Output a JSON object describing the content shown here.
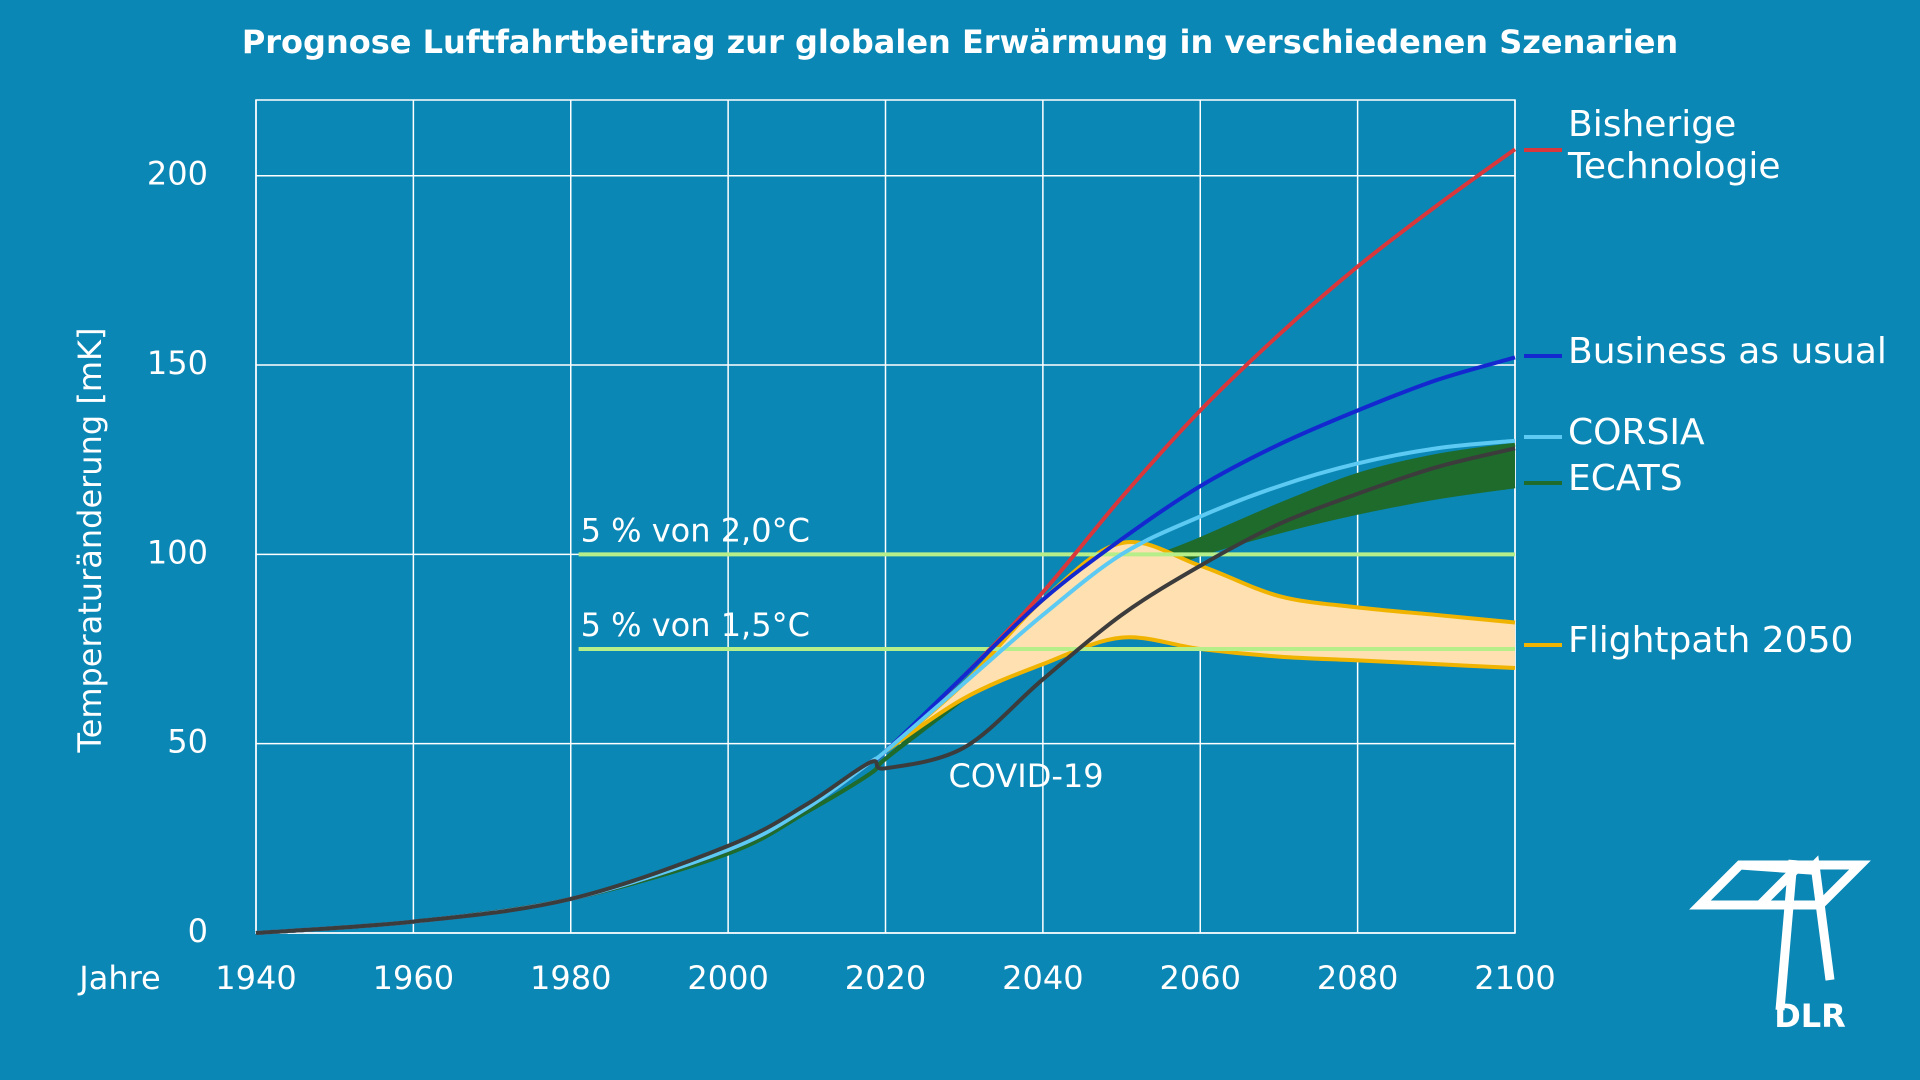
{
  "chart_data": {
    "type": "line",
    "title": "Prognose Luftfahrtbeitrag zur globalen Erwärmung in verschiedenen Szenarien",
    "x_label": "Jahre",
    "y_label": "Temperaturänderung [mK]",
    "x": [
      1940,
      1960,
      1980,
      2000,
      2010,
      2018,
      2020,
      2030,
      2040,
      2050,
      2060,
      2070,
      2080,
      2090,
      2100
    ],
    "xlim": [
      1940,
      2100
    ],
    "xticks": [
      1940,
      1960,
      1980,
      2000,
      2020,
      2040,
      2060,
      2080,
      2100
    ],
    "ylim": [
      0,
      220
    ],
    "yticks": [
      0,
      50,
      100,
      150,
      200
    ],
    "grid": true,
    "series": [
      {
        "name": "Bisherige Technologie",
        "color": "#d8383c",
        "values": [
          0,
          3,
          9,
          22,
          33,
          45,
          48,
          68,
          90,
          115,
          138,
          158,
          176,
          192,
          207
        ]
      },
      {
        "name": "Business as usual",
        "color": "#1428d0",
        "values": [
          0,
          3,
          9,
          22,
          33,
          45,
          48,
          68,
          88,
          104,
          118,
          129,
          138,
          146,
          152
        ]
      },
      {
        "name": "CORSIA",
        "color": "#5ccaf2",
        "values": [
          0,
          3,
          9,
          22,
          33,
          45,
          48,
          66,
          84,
          100,
          110,
          118,
          124,
          128,
          130
        ]
      }
    ],
    "bands": [
      {
        "name": "ECATS",
        "color": "#1e6b2c",
        "fill": "#1e6b2c",
        "upper": [
          0,
          3,
          9,
          21,
          32,
          42,
          46,
          63,
          80,
          95,
          104,
          113,
          121,
          126,
          129
        ],
        "lower": [
          0,
          3,
          9,
          21,
          32,
          42,
          46,
          62,
          79,
          92,
          100,
          106,
          111,
          115,
          118
        ]
      },
      {
        "name": "Flightpath 2050",
        "color": "#f0b400",
        "fill": "#ffe0b0",
        "upper": [
          null,
          null,
          null,
          null,
          null,
          null,
          48,
          66,
          88,
          103,
          97,
          89,
          86,
          84,
          82
        ],
        "lower": [
          null,
          null,
          null,
          null,
          null,
          null,
          48,
          62,
          71,
          78,
          75,
          73,
          72,
          71,
          70
        ]
      }
    ],
    "covid": {
      "label": "COVID-19",
      "color": "#3c3c3c",
      "values": [
        0,
        3,
        9,
        23,
        34,
        45,
        43.5,
        49,
        67,
        84,
        97,
        108,
        116,
        123,
        128
      ]
    },
    "reference_lines": [
      {
        "label": "5 % von 2,0°C",
        "value": 100,
        "x_start": 1981,
        "color": "#b6ee8a"
      },
      {
        "label": "5 % von 1,5°C",
        "value": 75,
        "x_start": 1981,
        "color": "#b6ee8a"
      }
    ]
  },
  "logo": "DLR"
}
